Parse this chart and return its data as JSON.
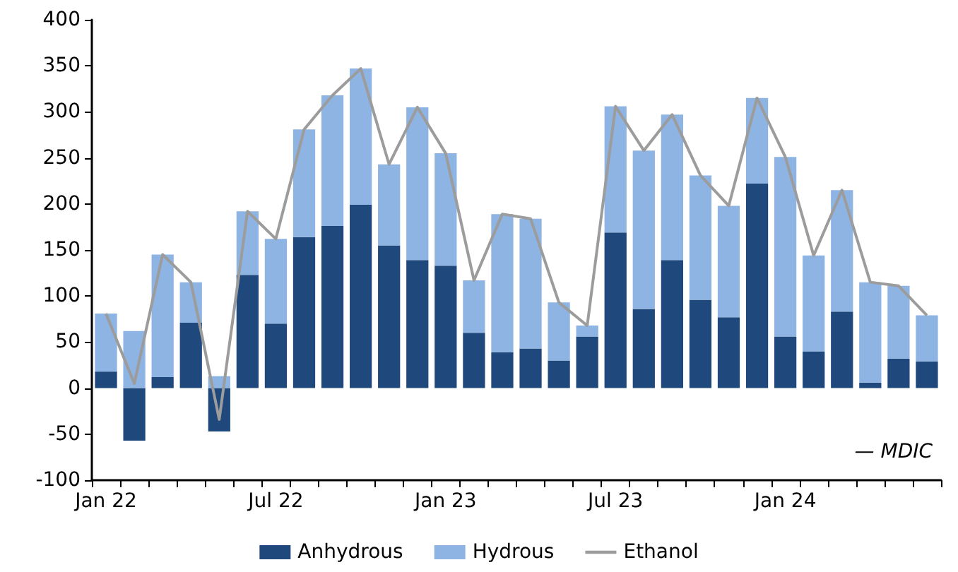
{
  "chart_data": {
    "type": "bar",
    "stacked": true,
    "categories": [
      "Jan 22",
      null,
      null,
      null,
      null,
      null,
      "Jul 22",
      null,
      null,
      null,
      null,
      null,
      "Jan 23",
      null,
      null,
      null,
      null,
      null,
      "Jul 23",
      null,
      null,
      null,
      null,
      null,
      "Jan 24",
      null,
      null,
      null,
      null,
      null
    ],
    "series": [
      {
        "name": "Anhydrous",
        "color": "#1f497d",
        "values": [
          18,
          -57,
          12,
          71,
          -47,
          123,
          70,
          164,
          176,
          199,
          155,
          139,
          133,
          60,
          39,
          43,
          30,
          56,
          169,
          86,
          139,
          96,
          77,
          222,
          56,
          40,
          83,
          6,
          32,
          29
        ]
      },
      {
        "name": "Hydrous",
        "color": "#8eb4e3",
        "values": [
          63,
          62,
          133,
          44,
          13,
          69,
          92,
          117,
          142,
          148,
          88,
          166,
          122,
          57,
          150,
          141,
          63,
          12,
          137,
          172,
          158,
          135,
          121,
          93,
          195,
          104,
          132,
          109,
          79,
          50
        ]
      },
      {
        "name": "Ethanol",
        "type": "line",
        "color": "#9c9c9c",
        "values": [
          81,
          5,
          145,
          115,
          -34,
          192,
          162,
          281,
          318,
          347,
          243,
          305,
          255,
          117,
          189,
          184,
          93,
          68,
          306,
          258,
          297,
          231,
          198,
          315,
          251,
          144,
          215,
          115,
          111,
          79
        ]
      }
    ],
    "ylim": [
      -100,
      400
    ],
    "yticks": [
      -100,
      -50,
      0,
      50,
      100,
      150,
      200,
      250,
      300,
      350,
      400
    ],
    "grid": false,
    "legend": "bottom",
    "marker": "none",
    "line_style": "solid",
    "annotations": [
      "— MDIC"
    ]
  }
}
